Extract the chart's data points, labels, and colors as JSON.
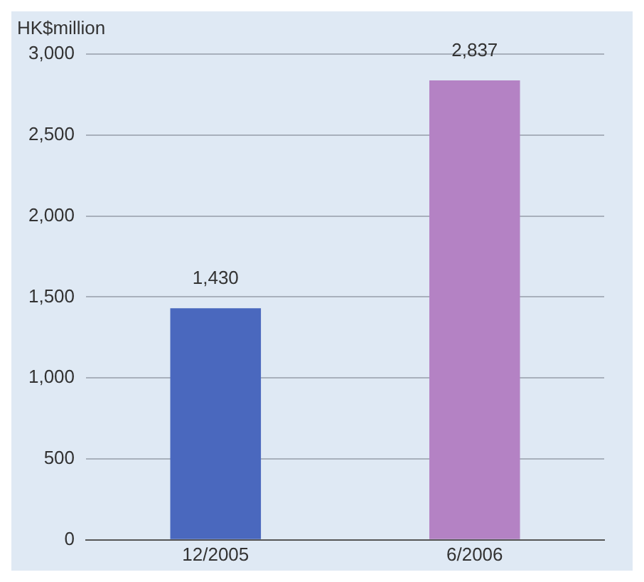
{
  "chart_data": {
    "type": "bar",
    "ylabel": "HK$million",
    "categories": [
      "12/2005",
      "6/2006"
    ],
    "values": [
      1430,
      2837
    ],
    "value_labels": [
      "1,430",
      "2,837"
    ],
    "colors": [
      "#4a68be",
      "#b482c4"
    ],
    "ylim": [
      0,
      3000
    ],
    "yticks": [
      0,
      500,
      {
        "value": 1000,
        "label": "1,000"
      },
      {
        "value": 1500,
        "label": "1,500"
      },
      {
        "value": 2000,
        "label": "2,000"
      },
      {
        "value": 2500,
        "label": "2,500"
      },
      {
        "value": 3000,
        "label": "3,000"
      }
    ],
    "grid": "y",
    "legend": false
  }
}
